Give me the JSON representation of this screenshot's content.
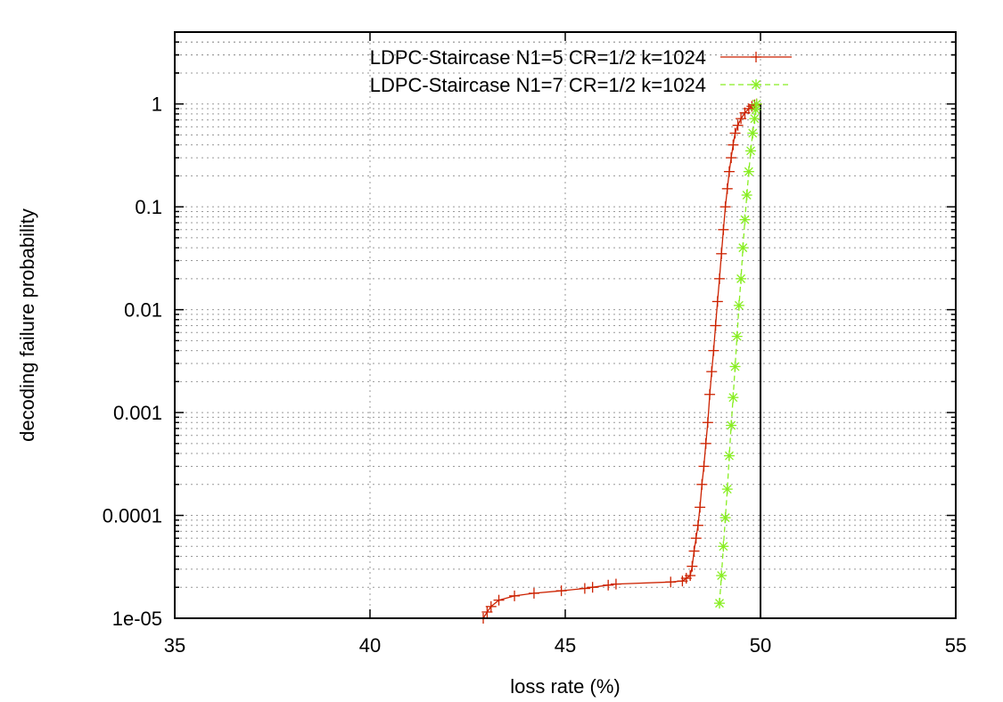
{
  "chart_data": {
    "type": "line",
    "title": "",
    "xlabel": "loss rate (%)",
    "ylabel": "decoding failure probability",
    "xlim": [
      35,
      55
    ],
    "ylim": [
      1e-05,
      5
    ],
    "yscale": "log",
    "grid": true,
    "legend_position": "top-right",
    "x_ticks": [
      35,
      40,
      45,
      50,
      55
    ],
    "x_tick_labels": [
      "35",
      "40",
      "45",
      "50",
      "55"
    ],
    "y_ticks": [
      1e-05,
      0.0001,
      0.001,
      0.01,
      0.1,
      1
    ],
    "y_tick_labels": [
      "1e-05",
      "0.0001",
      "0.001",
      "0.01",
      "0.1",
      "1"
    ],
    "vertical_reference_line": {
      "x": 50,
      "color": "#000000"
    },
    "series": [
      {
        "name": "LDPC-Staircase N1=5 CR=1/2 k=1024",
        "color": "#cc2200",
        "marker": "plus",
        "line": "solid",
        "points": [
          [
            42.9,
            1e-05
          ],
          [
            43.0,
            1.15e-05
          ],
          [
            43.1,
            1.3e-05
          ],
          [
            43.3,
            1.5e-05
          ],
          [
            43.7,
            1.65e-05
          ],
          [
            44.2,
            1.75e-05
          ],
          [
            44.9,
            1.85e-05
          ],
          [
            45.5,
            1.95e-05
          ],
          [
            45.7,
            2e-05
          ],
          [
            46.1,
            2.1e-05
          ],
          [
            46.3,
            2.15e-05
          ],
          [
            47.7,
            2.25e-05
          ],
          [
            48.0,
            2.3e-05
          ],
          [
            48.1,
            2.45e-05
          ],
          [
            48.2,
            2.6e-05
          ],
          [
            48.25,
            3.2e-05
          ],
          [
            48.3,
            4.5e-05
          ],
          [
            48.35,
            6e-05
          ],
          [
            48.4,
            8e-05
          ],
          [
            48.45,
            0.00012
          ],
          [
            48.5,
            0.0002
          ],
          [
            48.55,
            0.0003
          ],
          [
            48.6,
            0.0005
          ],
          [
            48.65,
            0.0008
          ],
          [
            48.7,
            0.0015
          ],
          [
            48.75,
            0.0025
          ],
          [
            48.8,
            0.004
          ],
          [
            48.85,
            0.007
          ],
          [
            48.9,
            0.012
          ],
          [
            48.95,
            0.02
          ],
          [
            49.0,
            0.035
          ],
          [
            49.05,
            0.06
          ],
          [
            49.1,
            0.1
          ],
          [
            49.15,
            0.15
          ],
          [
            49.2,
            0.22
          ],
          [
            49.25,
            0.3
          ],
          [
            49.3,
            0.4
          ],
          [
            49.35,
            0.52
          ],
          [
            49.42,
            0.62
          ],
          [
            49.5,
            0.72
          ],
          [
            49.6,
            0.82
          ],
          [
            49.7,
            0.9
          ],
          [
            49.78,
            0.95
          ],
          [
            49.85,
            0.98
          ],
          [
            49.9,
            1.0
          ]
        ]
      },
      {
        "name": "LDPC-Staircase N1=7 CR=1/2 k=1024",
        "color": "#88ee22",
        "marker": "star",
        "line": "dashed",
        "points": [
          [
            48.95,
            1.4e-05
          ],
          [
            49.0,
            2.6e-05
          ],
          [
            49.05,
            5e-05
          ],
          [
            49.1,
            9.5e-05
          ],
          [
            49.15,
            0.00018
          ],
          [
            49.2,
            0.00038
          ],
          [
            49.25,
            0.00075
          ],
          [
            49.3,
            0.0014
          ],
          [
            49.35,
            0.0028
          ],
          [
            49.4,
            0.0055
          ],
          [
            49.45,
            0.011
          ],
          [
            49.5,
            0.02
          ],
          [
            49.55,
            0.04
          ],
          [
            49.6,
            0.075
          ],
          [
            49.65,
            0.13
          ],
          [
            49.7,
            0.22
          ],
          [
            49.75,
            0.35
          ],
          [
            49.8,
            0.52
          ],
          [
            49.85,
            0.72
          ],
          [
            49.88,
            0.88
          ],
          [
            49.9,
            1.0
          ]
        ]
      }
    ]
  }
}
